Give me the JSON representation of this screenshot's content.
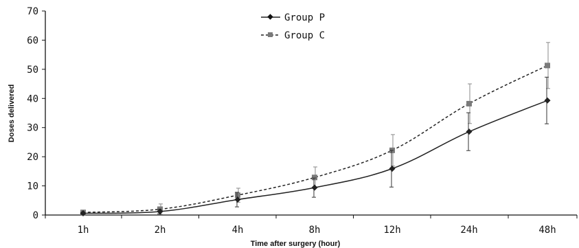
{
  "chart_data": {
    "type": "line",
    "title": "",
    "xlabel": "Time after surgery (hour)",
    "ylabel": "Doses delivered",
    "categories": [
      "1h",
      "2h",
      "4h",
      "8h",
      "12h",
      "24h",
      "48h"
    ],
    "ylim": [
      0,
      70
    ],
    "yticks": [
      "0",
      "10",
      "20",
      "30",
      "40",
      "50",
      "60",
      "70"
    ],
    "grid": false,
    "legend_position": "top-center",
    "series": [
      {
        "name": "Group P",
        "values": [
          0.6,
          1.2,
          5.3,
          9.4,
          15.9,
          28.6,
          39.3
        ],
        "error": [
          0.3,
          0.8,
          2.5,
          3.3,
          6.3,
          6.5,
          8.0
        ],
        "marker": "diamond",
        "line_style": "solid",
        "color": "#222222"
      },
      {
        "name": "Group C",
        "values": [
          0.9,
          2.0,
          6.8,
          12.9,
          22.2,
          38.2,
          51.3
        ],
        "error": [
          0.4,
          1.8,
          2.4,
          3.6,
          5.4,
          6.8,
          7.9
        ],
        "marker": "square",
        "line_style": "dashed",
        "color": "#7a7a7a"
      }
    ]
  }
}
